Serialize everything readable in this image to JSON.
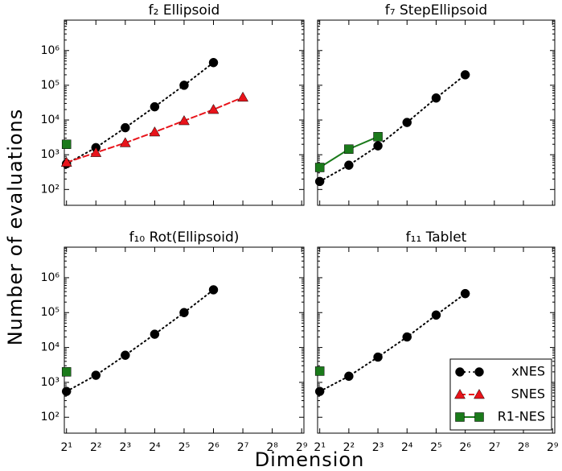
{
  "xlabel": "Dimension",
  "ylabel": "Number of evaluations",
  "xscale": "log",
  "yscale": "log",
  "xlim": [
    1.9,
    540
  ],
  "xticks": [
    {
      "value": 2,
      "label": "2¹"
    },
    {
      "value": 4,
      "label": "2²"
    },
    {
      "value": 8,
      "label": "2³"
    },
    {
      "value": 16,
      "label": "2⁴"
    },
    {
      "value": 32,
      "label": "2⁵"
    },
    {
      "value": 64,
      "label": "2⁶"
    },
    {
      "value": 128,
      "label": "2⁷"
    },
    {
      "value": 256,
      "label": "2⁸"
    },
    {
      "value": 512,
      "label": "2⁹"
    }
  ],
  "ylim": [
    35,
    7500000
  ],
  "yticks": [
    {
      "value": 100,
      "label": "10²"
    },
    {
      "value": 1000,
      "label": "10³"
    },
    {
      "value": 10000,
      "label": "10⁴"
    },
    {
      "value": 100000,
      "label": "10⁵"
    },
    {
      "value": 1000000,
      "label": "10⁶"
    }
  ],
  "chart_data": [
    {
      "type": "line",
      "title": "f₂ Ellipsoid",
      "x": [
        2,
        4,
        8,
        16,
        32,
        64,
        128
      ],
      "series": [
        {
          "name": "xNES",
          "color": "#000000",
          "linestyle": "dotted",
          "marker": "circle",
          "values": [
            550,
            1600,
            6000,
            24000,
            100000,
            450000,
            null
          ]
        },
        {
          "name": "SNES",
          "color": "#e8141b",
          "linestyle": "dashed",
          "marker": "triangle",
          "values": [
            600,
            1150,
            2200,
            4500,
            9500,
            20000,
            45000
          ]
        },
        {
          "name": "R1-NES",
          "color": "#1a7a1a",
          "linestyle": "solid",
          "marker": "square",
          "values": [
            2000,
            null,
            null,
            null,
            null,
            null,
            null
          ]
        }
      ]
    },
    {
      "type": "line",
      "title": "f₇ StepEllipsoid",
      "x": [
        2,
        4,
        8,
        16,
        32,
        64,
        128
      ],
      "series": [
        {
          "name": "xNES",
          "color": "#000000",
          "linestyle": "dotted",
          "marker": "circle",
          "values": [
            170,
            500,
            1800,
            8500,
            43000,
            200000,
            null
          ]
        },
        {
          "name": "SNES",
          "color": "#e8141b",
          "linestyle": "dashed",
          "marker": "triangle",
          "values": [
            null,
            null,
            null,
            null,
            null,
            null,
            null
          ]
        },
        {
          "name": "R1-NES",
          "color": "#1a7a1a",
          "linestyle": "solid",
          "marker": "square",
          "values": [
            430,
            1450,
            3300,
            null,
            null,
            null,
            null
          ]
        }
      ]
    },
    {
      "type": "line",
      "title": "f₁₀ Rot(Ellipsoid)",
      "x": [
        2,
        4,
        8,
        16,
        32,
        64,
        128
      ],
      "series": [
        {
          "name": "xNES",
          "color": "#000000",
          "linestyle": "dotted",
          "marker": "circle",
          "values": [
            550,
            1600,
            6000,
            24000,
            100000,
            450000,
            null
          ]
        },
        {
          "name": "SNES",
          "color": "#e8141b",
          "linestyle": "dashed",
          "marker": "triangle",
          "values": [
            null,
            null,
            null,
            null,
            null,
            null,
            null
          ]
        },
        {
          "name": "R1-NES",
          "color": "#1a7a1a",
          "linestyle": "solid",
          "marker": "square",
          "values": [
            2000,
            null,
            null,
            null,
            null,
            null,
            null
          ]
        }
      ]
    },
    {
      "type": "line",
      "title": "f₁₁ Tablet",
      "x": [
        2,
        4,
        8,
        16,
        32,
        64,
        128
      ],
      "legend": "lower right",
      "series": [
        {
          "name": "xNES",
          "color": "#000000",
          "linestyle": "dotted",
          "marker": "circle",
          "values": [
            550,
            1500,
            5300,
            20000,
            85000,
            350000,
            null
          ]
        },
        {
          "name": "SNES",
          "color": "#e8141b",
          "linestyle": "dashed",
          "marker": "triangle",
          "values": [
            null,
            null,
            null,
            null,
            null,
            null,
            null
          ]
        },
        {
          "name": "R1-NES",
          "color": "#1a7a1a",
          "linestyle": "solid",
          "marker": "square",
          "values": [
            2100,
            null,
            null,
            null,
            null,
            null,
            null
          ]
        }
      ]
    }
  ]
}
